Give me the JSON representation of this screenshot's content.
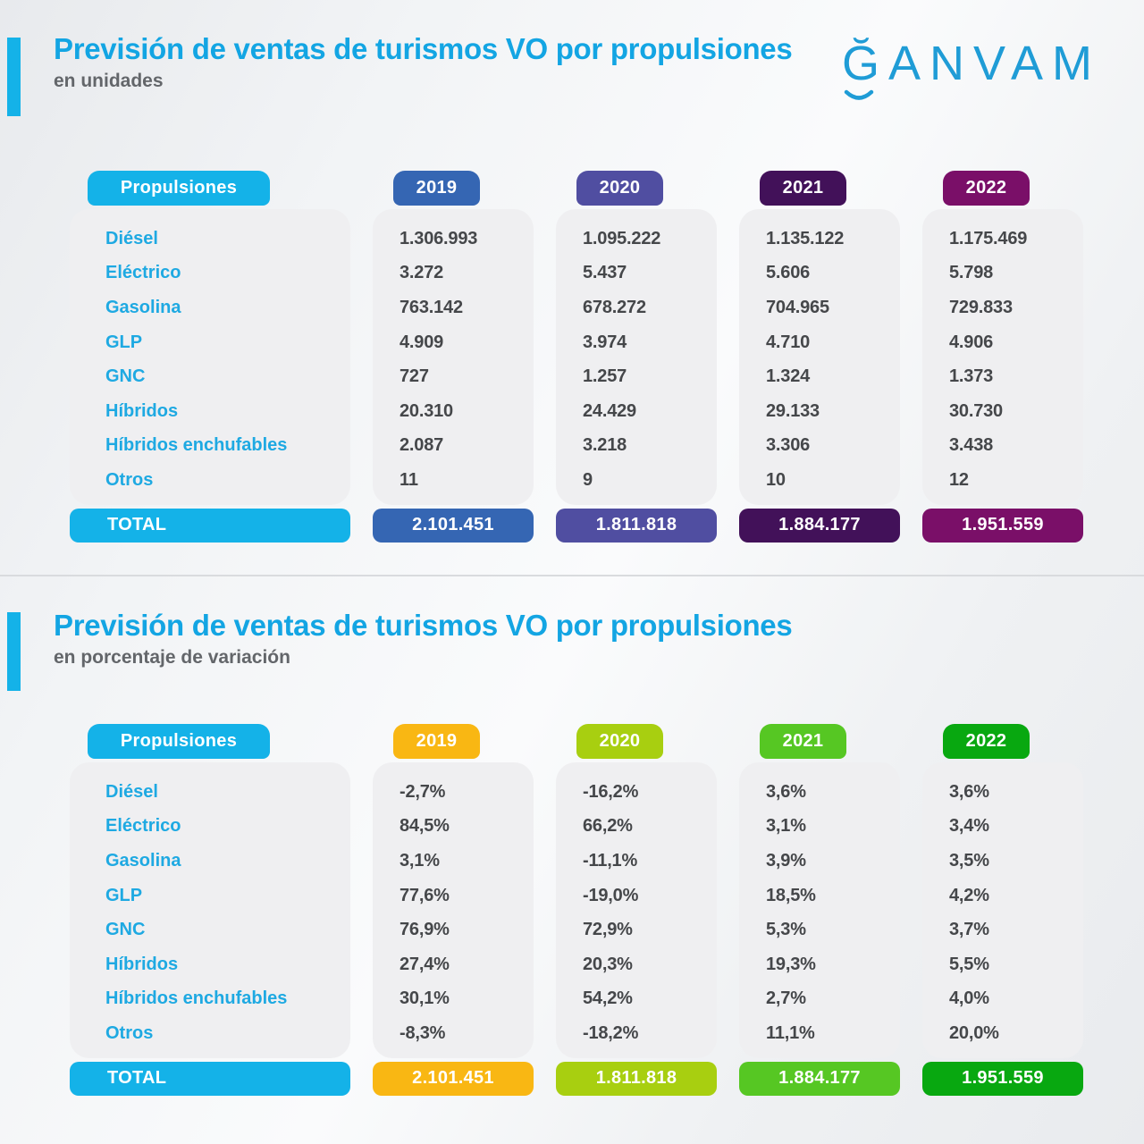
{
  "logo": {
    "g": "Ğ",
    "rest": "ANVAM"
  },
  "colors": {
    "cyan": "#14b2e8",
    "title": "#13a5e3",
    "value_text": "#45474a",
    "subtitle_text": "#63666a"
  },
  "sections": [
    {
      "title": "Previsión de ventas de turismos VO por propulsiones",
      "subtitle": "en unidades",
      "header_label": "Propulsiones",
      "years": [
        "2019",
        "2020",
        "2021",
        "2022"
      ],
      "year_colors": [
        "#3566b3",
        "#504ea1",
        "#421159",
        "#7a0f68"
      ],
      "rows": [
        {
          "label": "Diésel",
          "values": [
            "1.306.993",
            "1.095.222",
            "1.135.122",
            "1.175.469"
          ]
        },
        {
          "label": "Eléctrico",
          "values": [
            "3.272",
            "5.437",
            "5.606",
            "5.798"
          ]
        },
        {
          "label": "Gasolina",
          "values": [
            "763.142",
            "678.272",
            "704.965",
            "729.833"
          ]
        },
        {
          "label": "GLP",
          "values": [
            "4.909",
            "3.974",
            "4.710",
            "4.906"
          ]
        },
        {
          "label": "GNC",
          "values": [
            "727",
            "1.257",
            "1.324",
            "1.373"
          ]
        },
        {
          "label": "Híbridos",
          "values": [
            "20.310",
            "24.429",
            "29.133",
            "30.730"
          ]
        },
        {
          "label": "Híbridos enchufables",
          "values": [
            "2.087",
            "3.218",
            "3.306",
            "3.438"
          ]
        },
        {
          "label": "Otros",
          "values": [
            "11",
            "9",
            "10",
            "12"
          ]
        }
      ],
      "total_label": "TOTAL",
      "totals": [
        "2.101.451",
        "1.811.818",
        "1.884.177",
        "1.951.559"
      ]
    },
    {
      "title": "Previsión de ventas de turismos VO por propulsiones",
      "subtitle": "en porcentaje de variación",
      "header_label": "Propulsiones",
      "years": [
        "2019",
        "2020",
        "2021",
        "2022"
      ],
      "year_colors": [
        "#f9b713",
        "#a8cf10",
        "#56c723",
        "#08a810"
      ],
      "rows": [
        {
          "label": "Diésel",
          "values": [
            "-2,7%",
            "-16,2%",
            "3,6%",
            "3,6%"
          ]
        },
        {
          "label": "Eléctrico",
          "values": [
            "84,5%",
            "66,2%",
            "3,1%",
            "3,4%"
          ]
        },
        {
          "label": "Gasolina",
          "values": [
            "3,1%",
            "-11,1%",
            "3,9%",
            "3,5%"
          ]
        },
        {
          "label": "GLP",
          "values": [
            "77,6%",
            "-19,0%",
            "18,5%",
            "4,2%"
          ]
        },
        {
          "label": "GNC",
          "values": [
            "76,9%",
            "72,9%",
            "5,3%",
            "3,7%"
          ]
        },
        {
          "label": "Híbridos",
          "values": [
            "27,4%",
            "20,3%",
            "19,3%",
            "5,5%"
          ]
        },
        {
          "label": "Híbridos enchufables",
          "values": [
            "30,1%",
            "54,2%",
            "2,7%",
            "4,0%"
          ]
        },
        {
          "label": "Otros",
          "values": [
            "-8,3%",
            "-18,2%",
            "11,1%",
            "20,0%"
          ]
        }
      ],
      "total_label": "TOTAL",
      "totals": [
        "2.101.451",
        "1.811.818",
        "1.884.177",
        "1.951.559"
      ]
    }
  ],
  "chart_data": [
    {
      "type": "table",
      "title": "Previsión de ventas de turismos VO por propulsiones (en unidades)",
      "columns": [
        "Propulsiones",
        "2019",
        "2020",
        "2021",
        "2022"
      ],
      "rows": [
        [
          "Diésel",
          "1.306.993",
          "1.095.222",
          "1.135.122",
          "1.175.469"
        ],
        [
          "Eléctrico",
          "3.272",
          "5.437",
          "5.606",
          "5.798"
        ],
        [
          "Gasolina",
          "763.142",
          "678.272",
          "704.965",
          "729.833"
        ],
        [
          "GLP",
          "4.909",
          "3.974",
          "4.710",
          "4.906"
        ],
        [
          "GNC",
          "727",
          "1.257",
          "1.324",
          "1.373"
        ],
        [
          "Híbridos",
          "20.310",
          "24.429",
          "29.133",
          "30.730"
        ],
        [
          "Híbridos enchufables",
          "2.087",
          "3.218",
          "3.306",
          "3.438"
        ],
        [
          "Otros",
          "11",
          "9",
          "10",
          "12"
        ],
        [
          "TOTAL",
          "2.101.451",
          "1.811.818",
          "1.884.177",
          "1.951.559"
        ]
      ]
    },
    {
      "type": "table",
      "title": "Previsión de ventas de turismos VO por propulsiones (en porcentaje de variación)",
      "columns": [
        "Propulsiones",
        "2019",
        "2020",
        "2021",
        "2022"
      ],
      "rows": [
        [
          "Diésel",
          "-2,7%",
          "-16,2%",
          "3,6%",
          "3,6%"
        ],
        [
          "Eléctrico",
          "84,5%",
          "66,2%",
          "3,1%",
          "3,4%"
        ],
        [
          "Gasolina",
          "3,1%",
          "-11,1%",
          "3,9%",
          "3,5%"
        ],
        [
          "GLP",
          "77,6%",
          "-19,0%",
          "18,5%",
          "4,2%"
        ],
        [
          "GNC",
          "76,9%",
          "72,9%",
          "5,3%",
          "3,7%"
        ],
        [
          "Híbridos",
          "27,4%",
          "20,3%",
          "19,3%",
          "5,5%"
        ],
        [
          "Híbridos enchufables",
          "30,1%",
          "54,2%",
          "2,7%",
          "4,0%"
        ],
        [
          "Otros",
          "-8,3%",
          "-18,2%",
          "11,1%",
          "20,0%"
        ],
        [
          "TOTAL",
          "2.101.451",
          "1.811.818",
          "1.884.177",
          "1.951.559"
        ]
      ]
    }
  ]
}
